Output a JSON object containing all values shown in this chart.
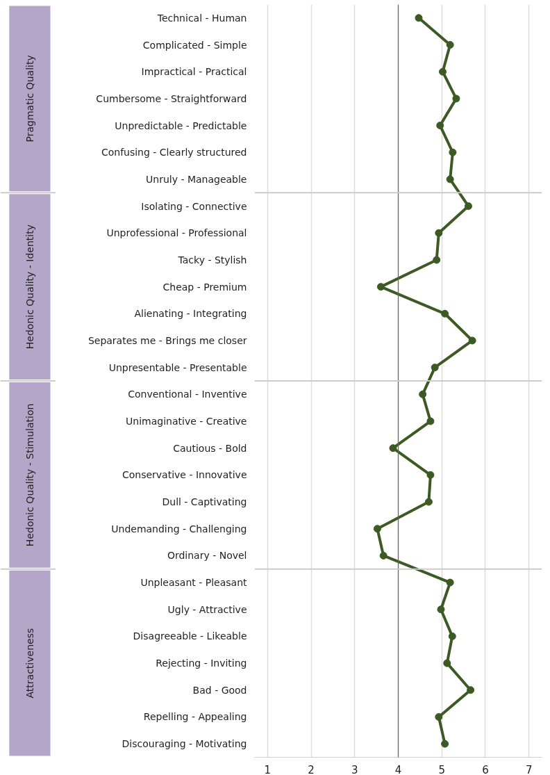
{
  "chart_data": {
    "type": "line",
    "categories": [
      "Technical - Human",
      "Complicated - Simple",
      "Impractical - Practical",
      "Cumbersome - Straightforward",
      "Unpredictable - Predictable",
      "Confusing - Clearly structured",
      "Unruly - Manageable",
      "Isolating - Connective",
      "Unprofessional - Professional",
      "Tacky - Stylish",
      "Cheap - Premium",
      "Alienating - Integrating",
      "Separates me - Brings me closer",
      "Unpresentable - Presentable",
      "Conventional - Inventive",
      "Unimaginative - Creative",
      "Cautious - Bold",
      "Conservative - Innovative",
      "Dull - Captivating",
      "Undemanding - Challenging",
      "Ordinary - Novel",
      "Unpleasant - Pleasant",
      "Ugly - Attractive",
      "Disagreeable - Likeable",
      "Rejecting - Inviting",
      "Bad - Good",
      "Repelling - Appealing",
      "Discouraging - Motivating"
    ],
    "orientation": "horizontal",
    "series": [
      {
        "color": "#3d5a24",
        "values": [
          4.47,
          5.19,
          5.02,
          5.33,
          4.96,
          5.25,
          5.19,
          5.61,
          4.93,
          4.88,
          3.6,
          5.07,
          5.7,
          4.84,
          4.56,
          4.74,
          3.88,
          4.74,
          4.7,
          3.52,
          3.66,
          5.19,
          4.98,
          5.24,
          5.12,
          5.66,
          4.93,
          5.07
        ]
      }
    ],
    "xlim": [
      0.7,
      7.3
    ],
    "xticks": [
      1,
      2,
      3,
      4,
      5,
      6,
      7
    ],
    "grid": "x",
    "marker": "circle",
    "line_style": "solid",
    "ref_lines": [
      {
        "axis": "x",
        "value": 4,
        "label": null,
        "color": "#666666"
      }
    ],
    "annotations": [
      "Pragmatic Quality",
      "Hedonic Quality - Identity",
      "Hedonic Quality - Stimulation",
      "Attractiveness"
    ]
  }
}
